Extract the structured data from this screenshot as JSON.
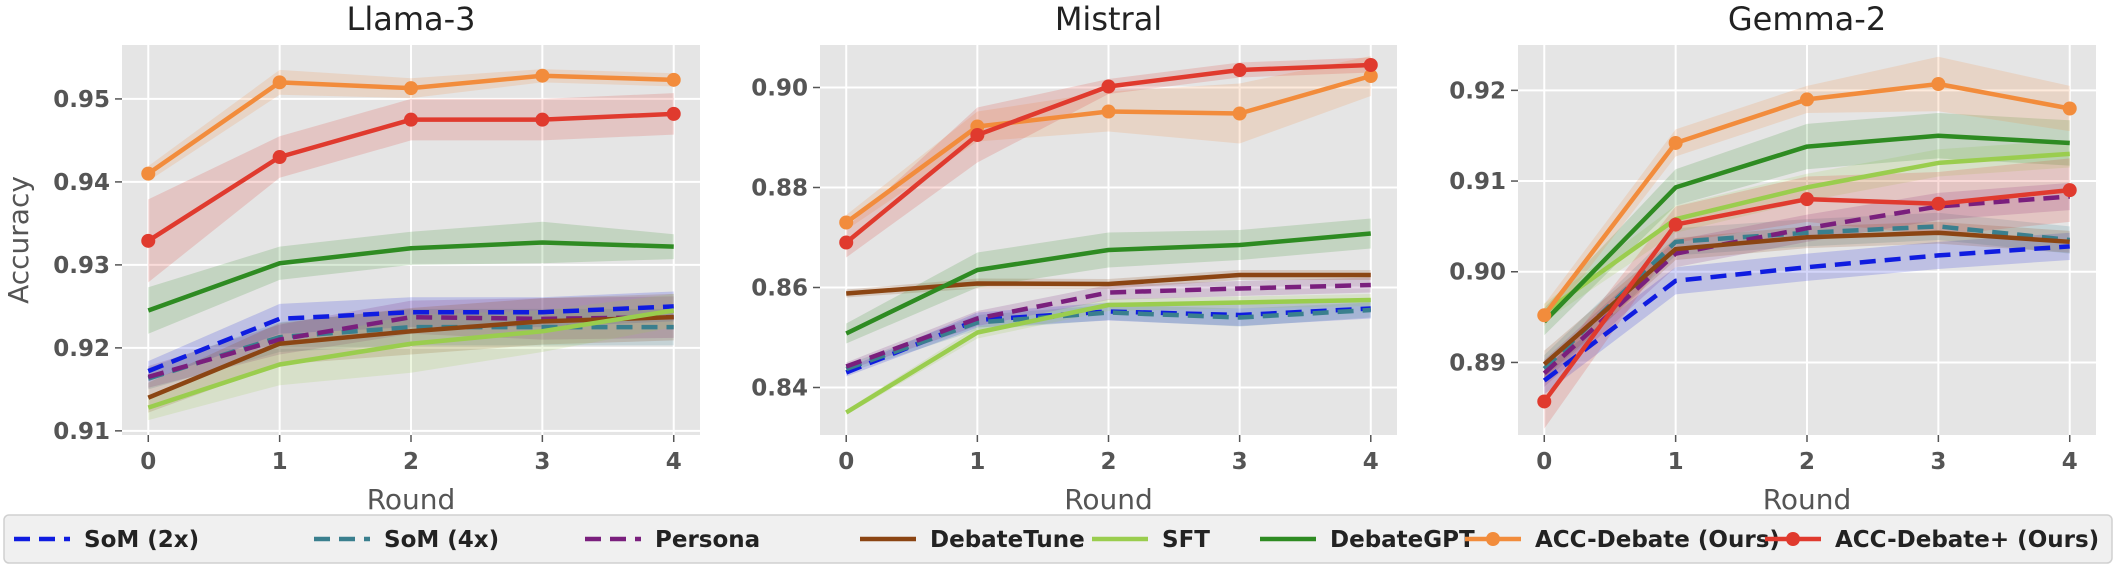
{
  "chart_data": [
    {
      "type": "line",
      "title": "Llama-3",
      "xlabel": "Round",
      "ylabel": "Accuracy",
      "x": [
        0,
        1,
        2,
        3,
        4
      ],
      "x_ticks": [
        "0",
        "1",
        "2",
        "3",
        "4"
      ],
      "xlim": [
        -0.2,
        4.2
      ],
      "ylim": [
        0.9095,
        0.9565
      ],
      "y_ticks": [
        0.91,
        0.92,
        0.93,
        0.94,
        0.95
      ],
      "y_tick_labels": [
        "0.91",
        "0.92",
        "0.93",
        "0.94",
        "0.95"
      ],
      "grid": true,
      "series": [
        {
          "name": "SoM (2x)",
          "values": [
            0.9172,
            0.9235,
            0.9243,
            0.9243,
            0.925
          ],
          "band": [
            0.0012,
            0.0018,
            0.0018,
            0.0018,
            0.0018
          ]
        },
        {
          "name": "SoM (4x)",
          "values": [
            0.9163,
            0.9213,
            0.9225,
            0.9225,
            0.9225
          ],
          "band": [
            0.0013,
            0.0018,
            0.0022,
            0.0022,
            0.0022
          ]
        },
        {
          "name": "Persona",
          "values": [
            0.9165,
            0.921,
            0.9237,
            0.9235,
            0.9237
          ],
          "band": [
            0.0013,
            0.0018,
            0.002,
            0.0025,
            0.0025
          ]
        },
        {
          "name": "DebateTune",
          "values": [
            0.914,
            0.9205,
            0.922,
            0.9232,
            0.9237
          ],
          "band": [
            0.0018,
            0.0025,
            0.0028,
            0.0028,
            0.0028
          ]
        },
        {
          "name": "SFT",
          "values": [
            0.9128,
            0.918,
            0.9205,
            0.922,
            0.9245
          ],
          "band": [
            0.0015,
            0.0025,
            0.0035,
            0.0025,
            0.002
          ]
        },
        {
          "name": "DebateGPT",
          "values": [
            0.9245,
            0.9302,
            0.932,
            0.9327,
            0.9322
          ],
          "band": [
            0.0028,
            0.002,
            0.002,
            0.0025,
            0.0015
          ]
        },
        {
          "name": "ACC-Debate (Ours)",
          "values": [
            0.941,
            0.952,
            0.9513,
            0.9528,
            0.9523
          ],
          "band": [
            0.0009,
            0.0015,
            0.0012,
            0.0008,
            0.0008
          ]
        },
        {
          "name": "ACC-Debate+ (Ours)",
          "values": [
            0.9329,
            0.943,
            0.9475,
            0.9475,
            0.9482
          ],
          "band": [
            0.005,
            0.0025,
            0.0025,
            0.0025,
            0.0025
          ]
        }
      ]
    },
    {
      "type": "line",
      "title": "Mistral",
      "xlabel": "Round",
      "ylabel": "",
      "x": [
        0,
        1,
        2,
        3,
        4
      ],
      "x_ticks": [
        "0",
        "1",
        "2",
        "3",
        "4"
      ],
      "xlim": [
        -0.2,
        4.2
      ],
      "ylim": [
        0.8305,
        0.9085
      ],
      "y_ticks": [
        0.84,
        0.86,
        0.88,
        0.9
      ],
      "y_tick_labels": [
        "0.84",
        "0.86",
        "0.88",
        "0.90"
      ],
      "grid": true,
      "series": [
        {
          "name": "SoM (2x)",
          "values": [
            0.843,
            0.8535,
            0.8552,
            0.8545,
            0.8558
          ],
          "band": [
            0.0008,
            0.0015,
            0.0018,
            0.0022,
            0.002
          ]
        },
        {
          "name": "SoM (4x)",
          "values": [
            0.8437,
            0.853,
            0.855,
            0.854,
            0.8555
          ],
          "band": [
            0.0008,
            0.0015,
            0.0015,
            0.0018,
            0.0015
          ]
        },
        {
          "name": "Persona",
          "values": [
            0.8442,
            0.8538,
            0.859,
            0.8598,
            0.8605
          ],
          "band": [
            0.0008,
            0.0015,
            0.0015,
            0.0015,
            0.0015
          ]
        },
        {
          "name": "DebateTune",
          "values": [
            0.8588,
            0.8608,
            0.8607,
            0.8625,
            0.8625
          ],
          "band": [
            0.0008,
            0.001,
            0.001,
            0.001,
            0.001
          ]
        },
        {
          "name": "SFT",
          "values": [
            0.835,
            0.851,
            0.8565,
            0.857,
            0.8575
          ],
          "band": [
            0.0005,
            0.0012,
            0.0012,
            0.0012,
            0.0012
          ]
        },
        {
          "name": "DebateGPT",
          "values": [
            0.8508,
            0.8635,
            0.8675,
            0.8685,
            0.8708
          ],
          "band": [
            0.002,
            0.0035,
            0.0035,
            0.003,
            0.003
          ]
        },
        {
          "name": "ACC-Debate (Ours)",
          "values": [
            0.873,
            0.8922,
            0.8952,
            0.8948,
            0.9023
          ],
          "band": [
            0.0015,
            0.003,
            0.004,
            0.006,
            0.004
          ]
        },
        {
          "name": "ACC-Debate+ (Ours)",
          "values": [
            0.869,
            0.8905,
            0.9002,
            0.9035,
            0.9045
          ],
          "band": [
            0.003,
            0.0055,
            0.0015,
            0.0015,
            0.0015
          ]
        }
      ]
    },
    {
      "type": "line",
      "title": "Gemma-2",
      "xlabel": "Round",
      "ylabel": "",
      "x": [
        0,
        1,
        2,
        3,
        4
      ],
      "x_ticks": [
        "0",
        "1",
        "2",
        "3",
        "4"
      ],
      "xlim": [
        -0.2,
        4.2
      ],
      "ylim": [
        0.882,
        0.925
      ],
      "y_ticks": [
        0.89,
        0.9,
        0.91,
        0.92
      ],
      "y_tick_labels": [
        "0.89",
        "0.90",
        "0.91",
        "0.92"
      ],
      "grid": true,
      "series": [
        {
          "name": "SoM (2x)",
          "values": [
            0.888,
            0.899,
            0.9005,
            0.9018,
            0.9028
          ],
          "band": [
            0.0015,
            0.0015,
            0.0015,
            0.0015,
            0.0015
          ]
        },
        {
          "name": "SoM (4x)",
          "values": [
            0.8893,
            0.9033,
            0.9043,
            0.905,
            0.9035
          ],
          "band": [
            0.0015,
            0.0015,
            0.0015,
            0.0015,
            0.0015
          ]
        },
        {
          "name": "Persona",
          "values": [
            0.8888,
            0.902,
            0.9048,
            0.9072,
            0.9083
          ],
          "band": [
            0.0015,
            0.0015,
            0.0015,
            0.0015,
            0.0015
          ]
        },
        {
          "name": "DebateTune",
          "values": [
            0.8898,
            0.9025,
            0.9038,
            0.9043,
            0.9033
          ],
          "band": [
            0.0015,
            0.0012,
            0.0012,
            0.0012,
            0.0012
          ]
        },
        {
          "name": "SFT",
          "values": [
            0.8955,
            0.9058,
            0.9093,
            0.912,
            0.913
          ],
          "band": [
            0.001,
            0.0015,
            0.0015,
            0.0015,
            0.0015
          ]
        },
        {
          "name": "DebateGPT",
          "values": [
            0.8945,
            0.9093,
            0.9138,
            0.915,
            0.9142
          ],
          "band": [
            0.0015,
            0.002,
            0.0025,
            0.0025,
            0.0025
          ]
        },
        {
          "name": "ACC-Debate (Ours)",
          "values": [
            0.8952,
            0.9142,
            0.919,
            0.9207,
            0.918
          ],
          "band": [
            0.0012,
            0.0015,
            0.0015,
            0.003,
            0.0025
          ]
        },
        {
          "name": "ACC-Debate+ (Ours)",
          "values": [
            0.8857,
            0.9052,
            0.908,
            0.9075,
            0.909
          ],
          "band": [
            0.003,
            0.002,
            0.0025,
            0.0035,
            0.0035
          ]
        }
      ]
    }
  ],
  "legend": [
    {
      "name": "SoM (2x)",
      "color": "#0f1ce0",
      "dash": "dashed",
      "marker": false
    },
    {
      "name": "SoM (4x)",
      "color": "#3a7f8e",
      "dash": "dashed",
      "marker": false
    },
    {
      "name": "Persona",
      "color": "#7a1f7d",
      "dash": "dashed",
      "marker": false
    },
    {
      "name": "DebateTune",
      "color": "#8b4513",
      "dash": "solid",
      "marker": false
    },
    {
      "name": "SFT",
      "color": "#9acd4e",
      "dash": "solid",
      "marker": false
    },
    {
      "name": "DebateGPT",
      "color": "#2e8b22",
      "dash": "solid",
      "marker": false
    },
    {
      "name": "ACC-Debate (Ours)",
      "color": "#f28c3c",
      "dash": "solid",
      "marker": true
    },
    {
      "name": "ACC-Debate+ (Ours)",
      "color": "#e03a2e",
      "dash": "solid",
      "marker": true
    }
  ],
  "legend_placement": "bottom",
  "plot_background": "#e5e5e5"
}
